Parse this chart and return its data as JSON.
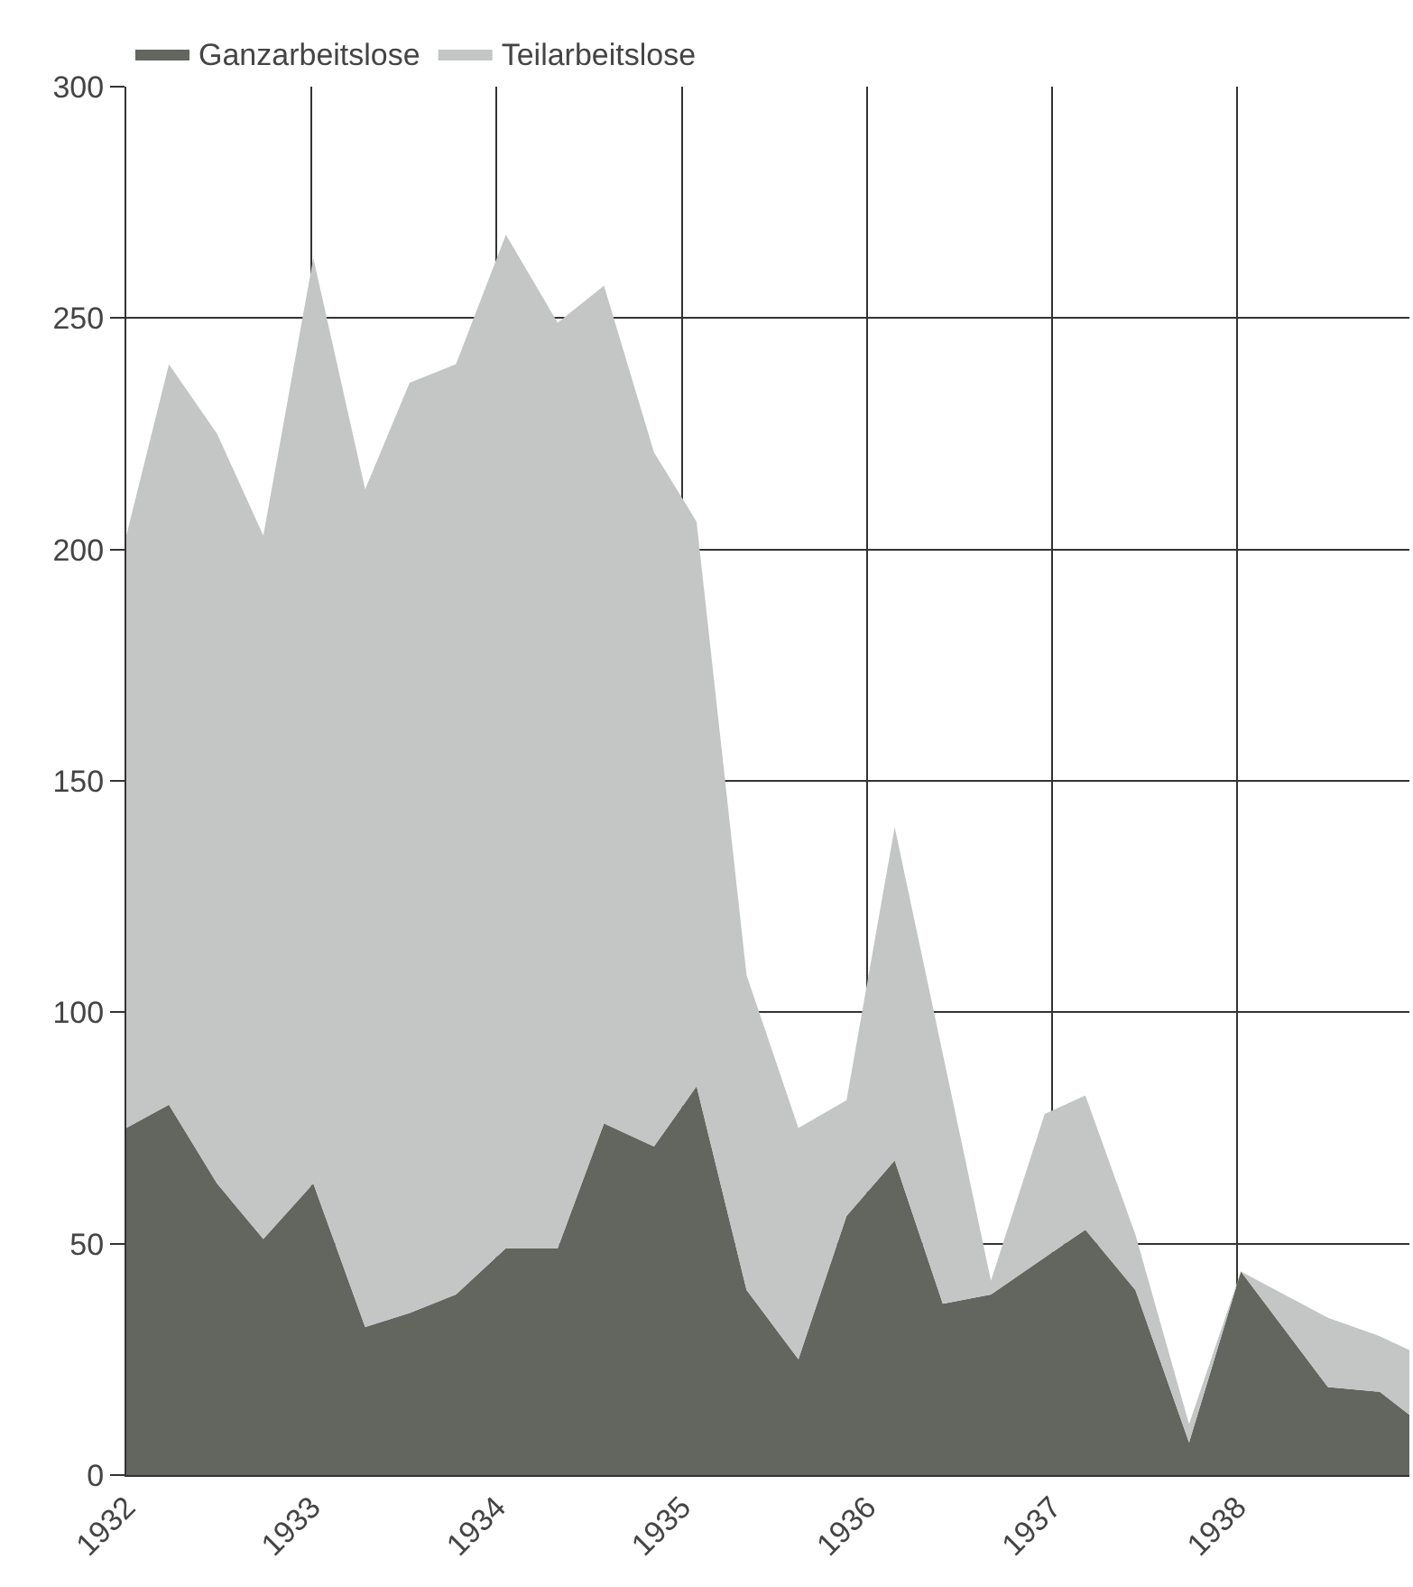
{
  "chart_data": {
    "type": "area",
    "stacked": true,
    "x": [
      1932.0,
      1932.23,
      1932.49,
      1932.74,
      1933.01,
      1933.29,
      1933.53,
      1933.78,
      1934.05,
      1934.33,
      1934.58,
      1934.85,
      1935.08,
      1935.35,
      1935.63,
      1935.89,
      1936.15,
      1936.41,
      1936.67,
      1936.96,
      1937.18,
      1937.45,
      1937.74,
      1938.02,
      1938.49,
      1938.77,
      1938.93
    ],
    "series": [
      {
        "name": "Ganzarbeitslose",
        "color": "#62665f",
        "values": [
          75,
          80,
          63,
          51,
          63,
          32,
          35,
          39,
          49,
          49,
          76,
          71,
          84,
          40,
          25,
          56,
          68,
          37,
          39,
          47,
          53,
          40,
          7,
          44,
          19,
          18,
          13
        ]
      },
      {
        "name": "Teilarbeitslose",
        "color": "#c4c5c5",
        "values": [
          128,
          160,
          162,
          152,
          200,
          181,
          201,
          201,
          219,
          200,
          181,
          150,
          122,
          68,
          50,
          25,
          72,
          54,
          3,
          31,
          29,
          12,
          4,
          0,
          15,
          12,
          14
        ]
      }
    ],
    "xlim": [
      1932,
      1938.93
    ],
    "xticks": [
      1932,
      1933,
      1934,
      1935,
      1936,
      1937,
      1938
    ],
    "ylim": [
      0,
      300
    ],
    "yticks": [
      0,
      50,
      100,
      150,
      200,
      250,
      300
    ],
    "grid": true,
    "legend": "top left"
  }
}
